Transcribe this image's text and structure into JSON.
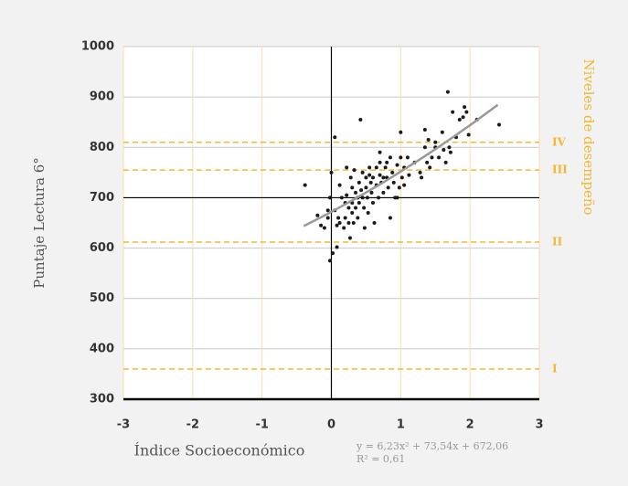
{
  "chart_data": {
    "type": "scatter",
    "ylabel": "Puntaje Lectura 6°",
    "xlabel": "Índice Socioeconómico",
    "y2label": "Niveles de desempeño",
    "xlim": [
      -3,
      3
    ],
    "xticks": [
      -3,
      -2,
      -1,
      0,
      1,
      2,
      3
    ],
    "ylim": [
      300,
      1000
    ],
    "yticks": [
      300,
      400,
      500,
      600,
      700,
      800,
      900,
      1000
    ],
    "grid": true,
    "color": "#1a1a1a",
    "reference_lines": {
      "x": 0,
      "y": 700
    },
    "levels": [
      {
        "label": "IV",
        "value": 810
      },
      {
        "label": "III",
        "value": 755
      },
      {
        "label": "II",
        "value": 612
      },
      {
        "label": "I",
        "value": 360
      }
    ],
    "level_color": "#f5b731",
    "trend": {
      "equation": "y = 6,23x² + 73,54x + 672,06",
      "r2": "R² = 0,61",
      "coefficients": [
        6.23,
        73.54,
        672.06
      ],
      "x_range": [
        -0.4,
        2.4
      ],
      "color": "#999999"
    },
    "x": [
      -0.38,
      -0.2,
      -0.15,
      -0.1,
      -0.05,
      -0.02,
      -0.05,
      0,
      -0.02,
      0.02,
      0.05,
      0.05,
      0.08,
      0.08,
      0.1,
      0.12,
      0.12,
      0.15,
      0.18,
      0.2,
      0.2,
      0.22,
      0.22,
      0.25,
      0.25,
      0.27,
      0.28,
      0.3,
      0.3,
      0.3,
      0.32,
      0.33,
      0.35,
      0.35,
      0.38,
      0.38,
      0.4,
      0.4,
      0.42,
      0.43,
      0.45,
      0.45,
      0.47,
      0.48,
      0.5,
      0.5,
      0.52,
      0.53,
      0.55,
      0.57,
      0.58,
      0.6,
      0.6,
      0.62,
      0.65,
      0.65,
      0.68,
      0.7,
      0.7,
      0.72,
      0.75,
      0.75,
      0.78,
      0.8,
      0.8,
      0.82,
      0.85,
      0.85,
      0.88,
      0.9,
      0.92,
      0.95,
      0.98,
      1.0,
      1.0,
      1.02,
      1.05,
      1.05,
      1.1,
      1.2,
      1.28,
      1.3,
      1.35,
      1.35,
      1.38,
      1.4,
      1.42,
      1.45,
      1.5,
      1.5,
      1.55,
      1.6,
      1.62,
      1.65,
      1.68,
      1.7,
      1.72,
      1.75,
      1.8,
      1.85,
      1.9,
      1.92,
      1.95,
      1.98,
      2.1,
      2.42,
      0.95,
      1.12,
      0.55,
      0.7
    ],
    "values": [
      725,
      665,
      645,
      640,
      660,
      700,
      675,
      750,
      575,
      590,
      820,
      675,
      645,
      602,
      660,
      725,
      650,
      700,
      640,
      690,
      660,
      760,
      705,
      680,
      650,
      620,
      740,
      720,
      690,
      670,
      650,
      755,
      710,
      680,
      700,
      660,
      730,
      690,
      855,
      715,
      750,
      700,
      680,
      640,
      740,
      720,
      700,
      670,
      745,
      730,
      710,
      740,
      690,
      650,
      760,
      725,
      700,
      790,
      745,
      730,
      740,
      710,
      760,
      770,
      740,
      720,
      780,
      660,
      750,
      730,
      700,
      765,
      720,
      780,
      830,
      740,
      760,
      725,
      780,
      770,
      750,
      740,
      800,
      835,
      770,
      815,
      760,
      780,
      810,
      800,
      780,
      830,
      795,
      770,
      910,
      800,
      790,
      870,
      820,
      855,
      860,
      880,
      870,
      825,
      855,
      845,
      700,
      745,
      760,
      770
    ]
  }
}
